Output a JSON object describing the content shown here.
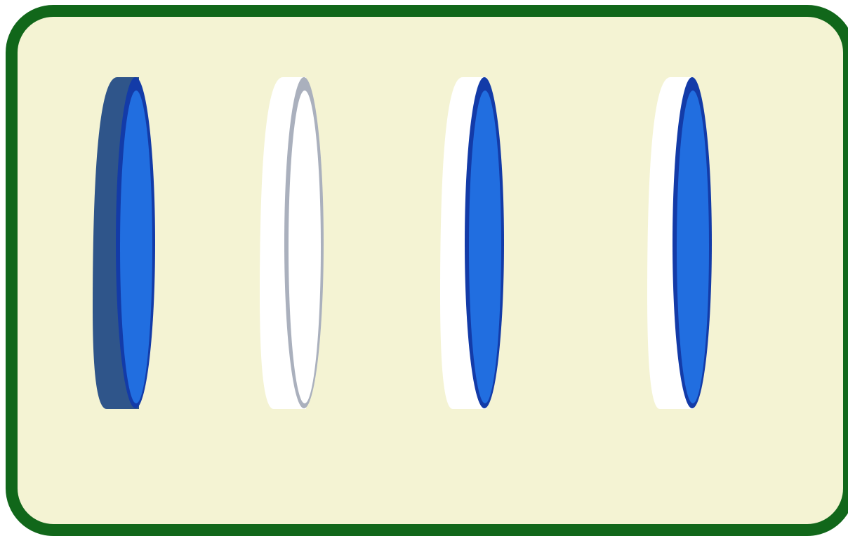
{
  "board": {
    "colors": {
      "frame": "#11671a",
      "felt": "#f4f3d3"
    }
  },
  "coins": [
    {
      "name": "coin-1",
      "face": "blue",
      "edge": "dark-blue",
      "face_color": "#216ee0",
      "rim_color": "#133ba8",
      "edge_color": "#2f558a"
    },
    {
      "name": "coin-2",
      "face": "white",
      "edge": "white",
      "face_color": "#ffffff",
      "rim_color": "#aab0bd",
      "edge_color": "#ffffff"
    },
    {
      "name": "coin-3",
      "face": "blue",
      "edge": "white",
      "face_color": "#216ee0",
      "rim_color": "#133ba8",
      "edge_color": "#ffffff"
    },
    {
      "name": "coin-4",
      "face": "blue",
      "edge": "white",
      "face_color": "#216ee0",
      "rim_color": "#133ba8",
      "edge_color": "#ffffff"
    }
  ]
}
